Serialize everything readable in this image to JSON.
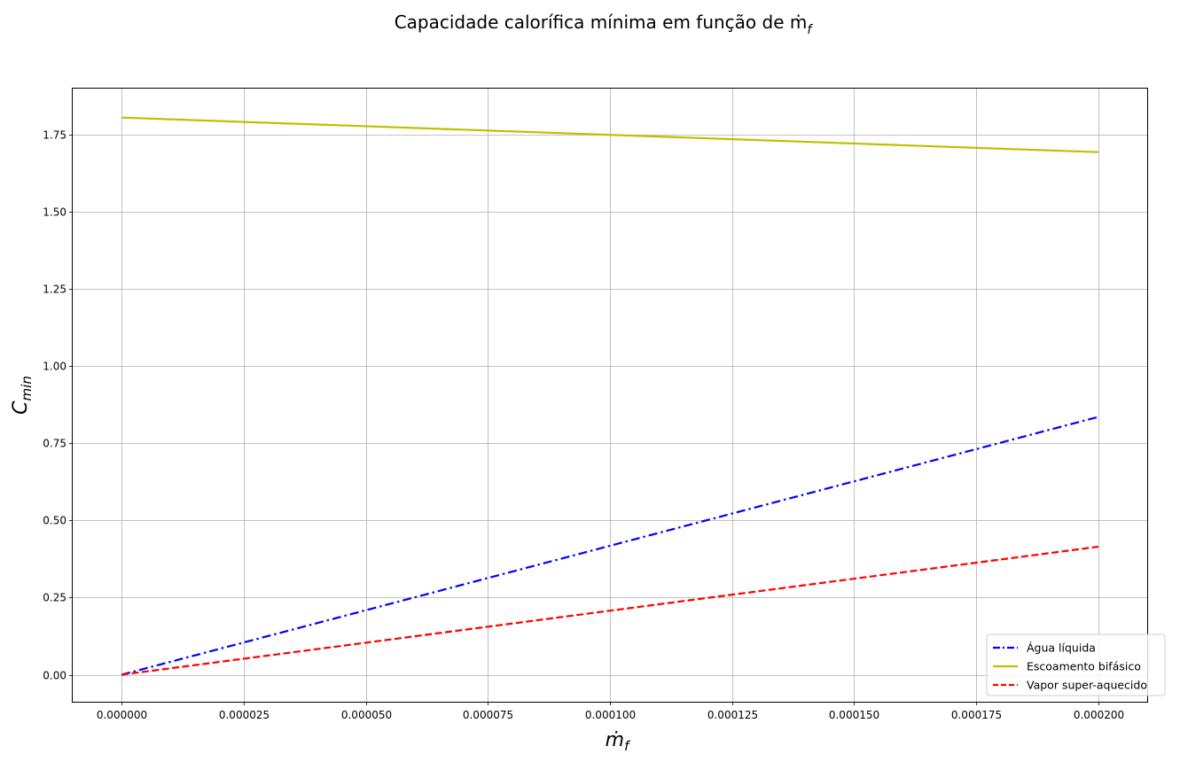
{
  "chart_data": {
    "type": "line",
    "title": "Capacidade calorífica mínima em função de ṁ",
    "title_subscript": "f",
    "xlabel": "ṁ",
    "xlabel_subscript": "f",
    "ylabel": "C",
    "ylabel_subscript": "min",
    "xlim": [
      -1e-05,
      0.00021
    ],
    "ylim": [
      -0.0875,
      1.9
    ],
    "x_ticks": [
      "0.000000",
      "0.000025",
      "0.000050",
      "0.000075",
      "0.000100",
      "0.000125",
      "0.000150",
      "0.000175",
      "0.000200"
    ],
    "x_tick_values": [
      0,
      2.5e-05,
      5e-05,
      7.5e-05,
      0.0001,
      0.000125,
      0.00015,
      0.000175,
      0.0002
    ],
    "y_ticks": [
      "0.00",
      "0.25",
      "0.50",
      "0.75",
      "1.00",
      "1.25",
      "1.50",
      "1.75"
    ],
    "y_tick_values": [
      0,
      0.25,
      0.5,
      0.75,
      1.0,
      1.25,
      1.5,
      1.75
    ],
    "grid": true,
    "legend_position": "bottom-right",
    "series": [
      {
        "name": "Água líquida",
        "color": "#0000ff",
        "style": "dashdot",
        "x": [
          0,
          0.0002
        ],
        "y": [
          0.0,
          0.836
        ]
      },
      {
        "name": "Escoamento bifásico",
        "color": "#bfbf00",
        "style": "solid",
        "x": [
          0,
          0.0002
        ],
        "y": [
          1.806,
          1.694
        ]
      },
      {
        "name": "Vapor super-aquecido",
        "color": "#ff0000",
        "style": "dashed",
        "x": [
          0,
          0.0002
        ],
        "y": [
          0.0,
          0.415
        ]
      }
    ]
  }
}
